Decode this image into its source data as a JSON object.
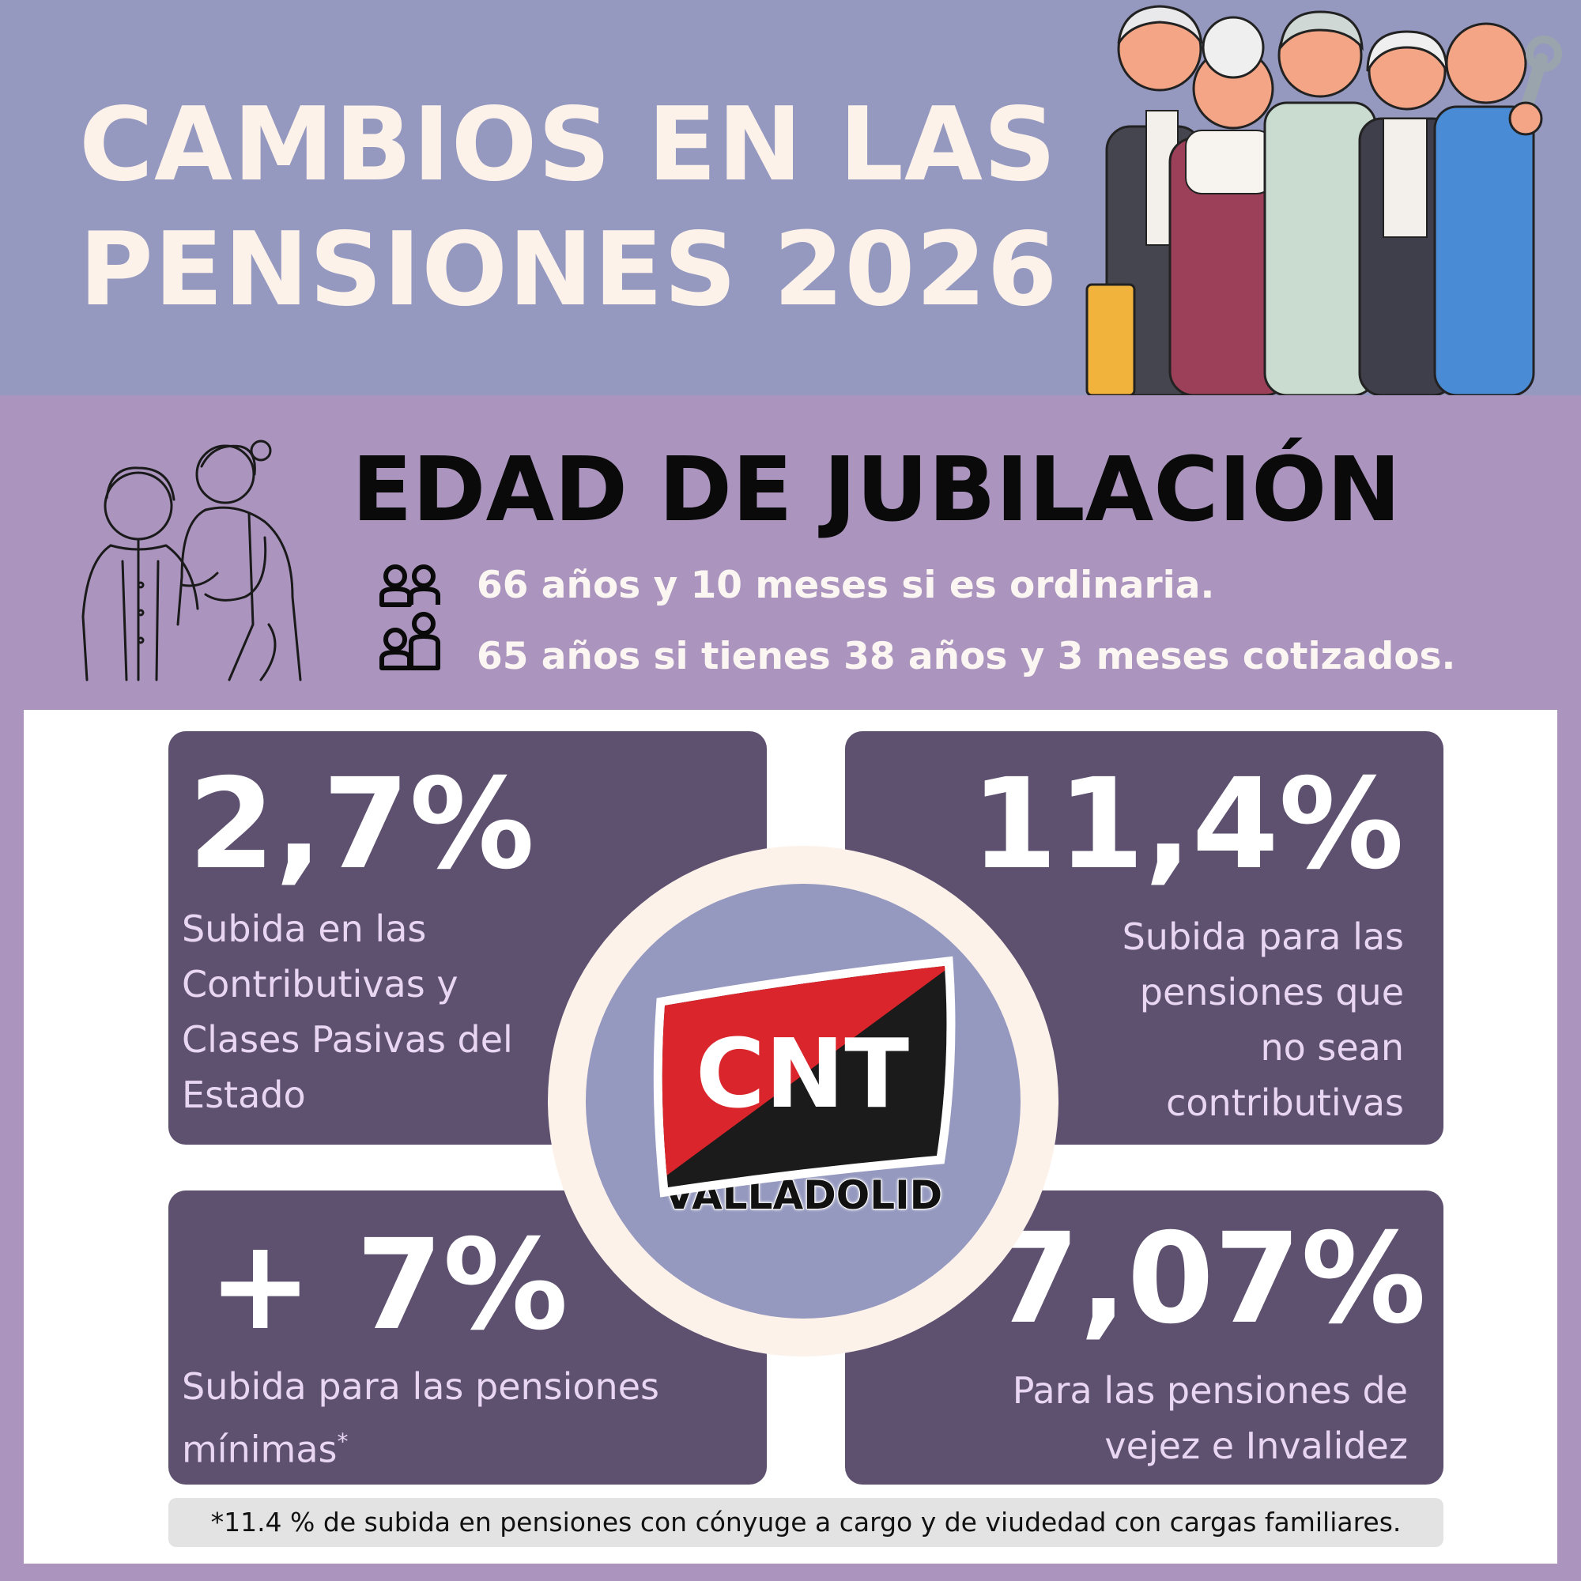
{
  "header": {
    "title_line1": "CAMBIOS EN LAS",
    "title_line2": "PENSIONES 2026"
  },
  "retirement": {
    "title": "EDAD DE JUBILACIÓN",
    "bullets": [
      "66 años y 10 meses si es ordinaria.",
      "65 años si tienes 38 años y 3 meses cotizados."
    ]
  },
  "cards": {
    "top_left": {
      "value": "2,7%",
      "desc_lines": [
        "Subida en las",
        "Contributivas y",
        "Clases Pasivas del",
        "Estado"
      ]
    },
    "top_right": {
      "value": "11,4%",
      "desc_lines": [
        "Subida para las",
        "pensiones que",
        "no sean",
        "contributivas"
      ]
    },
    "bottom_left": {
      "value": "+ 7%",
      "desc_lines": [
        "Subida para las pensiones",
        "mínimas"
      ],
      "mark": "*"
    },
    "bottom_right": {
      "value": "7,07%",
      "desc_lines": [
        "Para las pensiones de",
        "vejez e Invalidez"
      ]
    }
  },
  "logo": {
    "name": "CNT",
    "city": "VALLADOLID"
  },
  "footnote": "*11.4 % de subida en pensiones con cónyuge a cargo y de viudedad con cargas familiares.",
  "colors": {
    "header_bg": "#9599bf",
    "section_bg": "#ab95bf",
    "card_bg": "#5e5170",
    "cream": "#fcf2ea",
    "flag_red": "#d9252b",
    "flag_black": "#1b1b1b"
  },
  "icons": {
    "header_illustration": "elderly-people-group-illustration",
    "caregiver_illustration": "caregiver-with-elderly-illustration",
    "people_icon": "people-icon"
  }
}
